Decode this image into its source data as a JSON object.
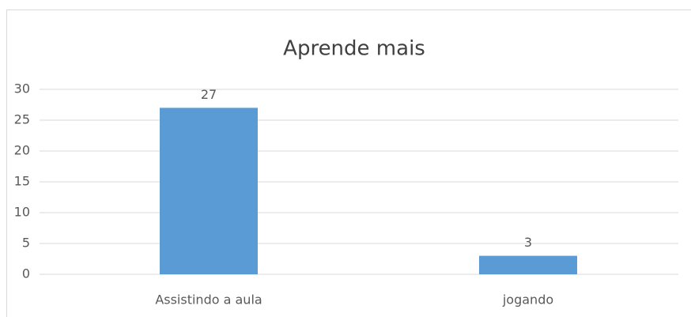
{
  "chart_data": {
    "type": "bar",
    "title": "Aprende mais",
    "categories": [
      "Assistindo a aula",
      "jogando"
    ],
    "values": [
      27,
      3
    ],
    "color": "#5b9bd5",
    "ylim": [
      0,
      30
    ],
    "yticks": [
      0,
      5,
      10,
      15,
      20,
      25,
      30
    ],
    "grid": true
  }
}
